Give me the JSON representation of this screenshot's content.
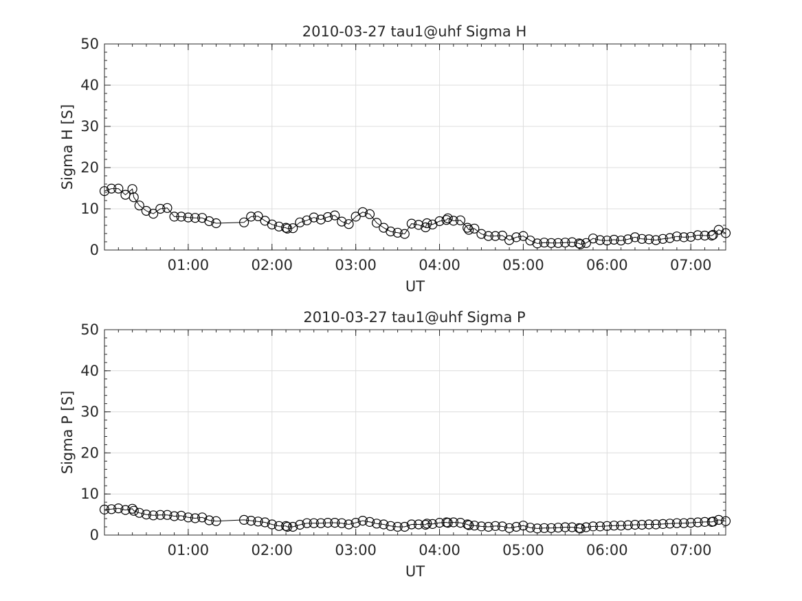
{
  "chart_data": [
    {
      "type": "line",
      "title": "2010-03-27  tau1@uhf Sigma H",
      "xlabel": "UT",
      "ylabel": "Sigma H [S]",
      "ylim": [
        0,
        50
      ],
      "xlim": [
        "00:00",
        "07:25"
      ],
      "yticks": [
        "0",
        "10",
        "20",
        "30",
        "40",
        "50"
      ],
      "xticks": [
        "01:00",
        "02:00",
        "03:00",
        "04:00",
        "05:00",
        "06:00",
        "07:00"
      ],
      "grid": true,
      "marker": "open-circle",
      "color": "#000000",
      "x": [
        "00:00",
        "00:05",
        "00:10",
        "00:15",
        "00:20",
        "00:21",
        "00:25",
        "00:30",
        "00:35",
        "00:40",
        "00:45",
        "00:50",
        "00:55",
        "01:00",
        "01:05",
        "01:10",
        "01:15",
        "01:20",
        "01:40",
        "01:45",
        "01:50",
        "01:55",
        "02:00",
        "02:05",
        "02:10",
        "02:11",
        "02:15",
        "02:20",
        "02:25",
        "02:30",
        "02:35",
        "02:40",
        "02:45",
        "02:50",
        "02:55",
        "03:00",
        "03:05",
        "03:10",
        "03:15",
        "03:20",
        "03:25",
        "03:30",
        "03:35",
        "03:40",
        "03:45",
        "03:50",
        "03:51",
        "03:55",
        "04:00",
        "04:05",
        "04:06",
        "04:10",
        "04:15",
        "04:20",
        "04:21",
        "04:25",
        "04:30",
        "04:35",
        "04:40",
        "04:45",
        "04:50",
        "04:55",
        "05:00",
        "05:05",
        "05:10",
        "05:15",
        "05:20",
        "05:25",
        "05:30",
        "05:35",
        "05:40",
        "05:41",
        "05:45",
        "05:50",
        "05:55",
        "06:00",
        "06:05",
        "06:10",
        "06:15",
        "06:20",
        "06:25",
        "06:30",
        "06:35",
        "06:40",
        "06:45",
        "06:50",
        "06:55",
        "07:00",
        "07:05",
        "07:10",
        "07:15",
        "07:16",
        "07:20",
        "07:25"
      ],
      "values": [
        14.3,
        14.9,
        14.9,
        13.4,
        14.8,
        12.8,
        10.8,
        9.5,
        8.8,
        10.0,
        10.2,
        8.1,
        8.1,
        7.9,
        7.8,
        7.8,
        7.0,
        6.5,
        6.7,
        8.1,
        8.2,
        7.1,
        6.2,
        5.7,
        5.4,
        5.2,
        5.3,
        6.7,
        7.2,
        7.9,
        7.4,
        8.0,
        8.4,
        6.9,
        6.3,
        8.1,
        9.2,
        8.7,
        6.6,
        5.4,
        4.5,
        4.2,
        3.9,
        6.4,
        6.1,
        5.5,
        6.5,
        6.2,
        7.0,
        7.3,
        7.7,
        7.1,
        7.2,
        5.4,
        4.9,
        5.2,
        3.9,
        3.4,
        3.4,
        3.5,
        2.4,
        3.1,
        3.4,
        2.3,
        1.6,
        1.8,
        1.7,
        1.7,
        1.8,
        1.9,
        1.6,
        1.4,
        1.7,
        2.8,
        2.4,
        2.3,
        2.5,
        2.3,
        2.6,
        3.1,
        2.7,
        2.6,
        2.4,
        2.7,
        2.9,
        3.3,
        3.1,
        3.2,
        3.6,
        3.5,
        3.5,
        3.7,
        4.9,
        4.1
      ]
    },
    {
      "type": "line",
      "title": "2010-03-27  tau1@uhf Sigma P",
      "xlabel": "UT",
      "ylabel": "Sigma P [S]",
      "ylim": [
        0,
        50
      ],
      "xlim": [
        "00:00",
        "07:25"
      ],
      "yticks": [
        "0",
        "10",
        "20",
        "30",
        "40",
        "50"
      ],
      "xticks": [
        "01:00",
        "02:00",
        "03:00",
        "04:00",
        "05:00",
        "06:00",
        "07:00"
      ],
      "grid": true,
      "marker": "open-circle",
      "color": "#000000",
      "x": [
        "00:00",
        "00:05",
        "00:10",
        "00:15",
        "00:20",
        "00:21",
        "00:25",
        "00:30",
        "00:35",
        "00:40",
        "00:45",
        "00:50",
        "00:55",
        "01:00",
        "01:05",
        "01:10",
        "01:15",
        "01:20",
        "01:40",
        "01:45",
        "01:50",
        "01:55",
        "02:00",
        "02:05",
        "02:10",
        "02:11",
        "02:15",
        "02:20",
        "02:25",
        "02:30",
        "02:35",
        "02:40",
        "02:45",
        "02:50",
        "02:55",
        "03:00",
        "03:05",
        "03:10",
        "03:15",
        "03:20",
        "03:25",
        "03:30",
        "03:35",
        "03:40",
        "03:45",
        "03:50",
        "03:51",
        "03:55",
        "04:00",
        "04:05",
        "04:06",
        "04:10",
        "04:15",
        "04:20",
        "04:21",
        "04:25",
        "04:30",
        "04:35",
        "04:40",
        "04:45",
        "04:50",
        "04:55",
        "05:00",
        "05:05",
        "05:10",
        "05:15",
        "05:20",
        "05:25",
        "05:30",
        "05:35",
        "05:40",
        "05:41",
        "05:45",
        "05:50",
        "05:55",
        "06:00",
        "06:05",
        "06:10",
        "06:15",
        "06:20",
        "06:25",
        "06:30",
        "06:35",
        "06:40",
        "06:45",
        "06:50",
        "06:55",
        "07:00",
        "07:05",
        "07:10",
        "07:15",
        "07:16",
        "07:20",
        "07:25"
      ],
      "values": [
        6.2,
        6.3,
        6.5,
        6.1,
        6.4,
        5.9,
        5.4,
        5.0,
        4.8,
        4.9,
        4.9,
        4.6,
        4.7,
        4.3,
        4.1,
        4.3,
        3.6,
        3.4,
        3.7,
        3.5,
        3.3,
        3.1,
        2.6,
        2.2,
        2.2,
        2.0,
        2.0,
        2.5,
        2.9,
        2.9,
        2.9,
        3.0,
        3.0,
        2.9,
        2.6,
        3.0,
        3.5,
        3.2,
        2.8,
        2.6,
        2.2,
        2.0,
        2.0,
        2.6,
        2.6,
        2.5,
        2.8,
        2.7,
        3.0,
        3.1,
        3.0,
        3.1,
        3.0,
        2.6,
        2.4,
        2.3,
        2.1,
        2.0,
        2.2,
        2.1,
        1.7,
        2.0,
        2.3,
        1.8,
        1.6,
        1.7,
        1.7,
        1.8,
        1.9,
        1.9,
        1.7,
        1.6,
        1.9,
        2.1,
        2.1,
        2.2,
        2.3,
        2.3,
        2.4,
        2.5,
        2.5,
        2.6,
        2.6,
        2.7,
        2.8,
        2.9,
        2.9,
        3.0,
        3.1,
        3.2,
        3.2,
        3.3,
        3.7,
        3.4
      ]
    }
  ]
}
